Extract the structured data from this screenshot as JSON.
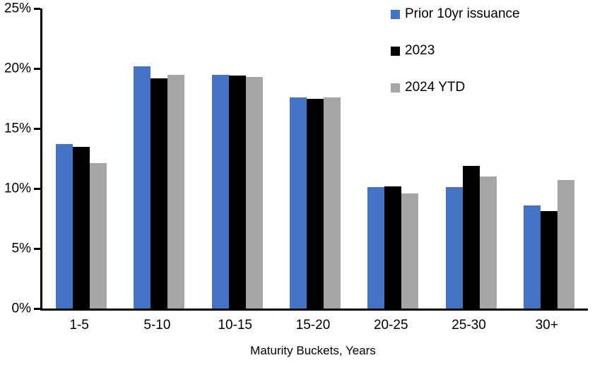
{
  "chart_data": {
    "type": "bar",
    "title": "",
    "categories": [
      "1-5",
      "5-10",
      "10-15",
      "15-20",
      "20-25",
      "25-30",
      "30+"
    ],
    "series": [
      {
        "name": "Prior 10yr issuance",
        "color": "#4472C4",
        "values": [
          13.7,
          20.2,
          19.5,
          17.6,
          10.1,
          10.1,
          8.6
        ]
      },
      {
        "name": "2023",
        "color": "#000000",
        "values": [
          13.5,
          19.2,
          19.4,
          17.5,
          10.2,
          11.9,
          8.1
        ]
      },
      {
        "name": "2024 YTD",
        "color": "#A6A6A6",
        "values": [
          12.1,
          19.5,
          19.3,
          17.6,
          9.6,
          11.0,
          10.7
        ]
      }
    ],
    "xlabel": "Maturity Buckets, Years",
    "ylabel": "",
    "ylim": [
      0,
      25
    ],
    "yticks": [
      0,
      5,
      10,
      15,
      20,
      25
    ],
    "ytick_suffix": "%",
    "grid": false,
    "legend_position": "top-right",
    "axis_color": "#000000",
    "background_color": "#FFFFFF"
  }
}
